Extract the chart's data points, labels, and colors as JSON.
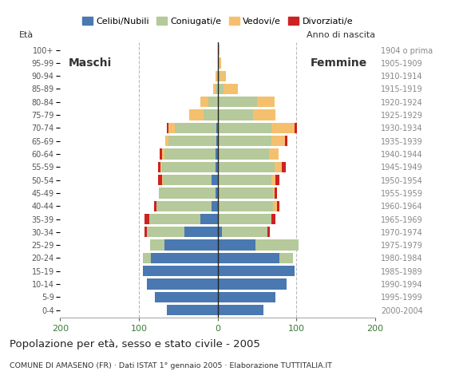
{
  "age_groups": [
    "0-4",
    "5-9",
    "10-14",
    "15-19",
    "20-24",
    "25-29",
    "30-34",
    "35-39",
    "40-44",
    "45-49",
    "50-54",
    "55-59",
    "60-64",
    "65-69",
    "70-74",
    "75-79",
    "80-84",
    "85-89",
    "90-94",
    "95-99",
    "100+"
  ],
  "birth_years": [
    "2000-2004",
    "1995-1999",
    "1990-1994",
    "1985-1989",
    "1980-1984",
    "1975-1979",
    "1970-1974",
    "1965-1969",
    "1960-1964",
    "1955-1959",
    "1950-1954",
    "1945-1949",
    "1940-1944",
    "1935-1939",
    "1930-1934",
    "1925-1929",
    "1920-1924",
    "1915-1919",
    "1910-1914",
    "1905-1909",
    "1904 o prima"
  ],
  "males": {
    "celibe": [
      65,
      80,
      90,
      95,
      85,
      68,
      42,
      22,
      8,
      3,
      8,
      3,
      3,
      2,
      2,
      0,
      0,
      0,
      0,
      0,
      0
    ],
    "coniugato": [
      0,
      0,
      0,
      0,
      10,
      18,
      48,
      65,
      70,
      72,
      62,
      68,
      65,
      60,
      52,
      18,
      12,
      3,
      1,
      0,
      0
    ],
    "vedovo": [
      0,
      0,
      0,
      0,
      0,
      0,
      0,
      0,
      0,
      0,
      1,
      2,
      3,
      5,
      8,
      18,
      10,
      3,
      2,
      0,
      0
    ],
    "divorziato": [
      0,
      0,
      0,
      0,
      0,
      0,
      3,
      6,
      3,
      0,
      5,
      3,
      3,
      0,
      3,
      0,
      0,
      0,
      0,
      0,
      0
    ]
  },
  "females": {
    "nubile": [
      58,
      73,
      88,
      98,
      78,
      48,
      5,
      0,
      0,
      0,
      0,
      0,
      0,
      0,
      0,
      0,
      0,
      0,
      0,
      0,
      0
    ],
    "coniugata": [
      0,
      0,
      0,
      0,
      18,
      55,
      58,
      68,
      70,
      70,
      68,
      72,
      65,
      68,
      68,
      45,
      50,
      8,
      3,
      0,
      0
    ],
    "vedova": [
      0,
      0,
      0,
      0,
      0,
      0,
      0,
      0,
      5,
      2,
      5,
      10,
      12,
      18,
      30,
      28,
      22,
      18,
      8,
      4,
      2
    ],
    "divorziata": [
      0,
      0,
      0,
      0,
      0,
      0,
      3,
      5,
      3,
      3,
      5,
      5,
      0,
      3,
      3,
      0,
      0,
      0,
      0,
      0,
      0
    ]
  },
  "colors": {
    "celibe": "#4a78b0",
    "coniugato": "#b5c99a",
    "vedovo": "#f5c06e",
    "divorziato": "#cc2222"
  },
  "xlim": 200,
  "title": "Popolazione per età, sesso e stato civile - 2005",
  "subtitle": "COMUNE DI AMASENO (FR) · Dati ISTAT 1° gennaio 2005 · Elaborazione TUTTITALIA.IT",
  "legend_labels": [
    "Celibi/Nubili",
    "Coniugati/e",
    "Vedovi/e",
    "Divorziati/e"
  ],
  "ylabel_left": "Età",
  "ylabel_right": "Anno di nascita",
  "label_maschi": "Maschi",
  "label_femmine": "Femmine",
  "background_color": "#ffffff",
  "grid_color": "#bbbbbb"
}
